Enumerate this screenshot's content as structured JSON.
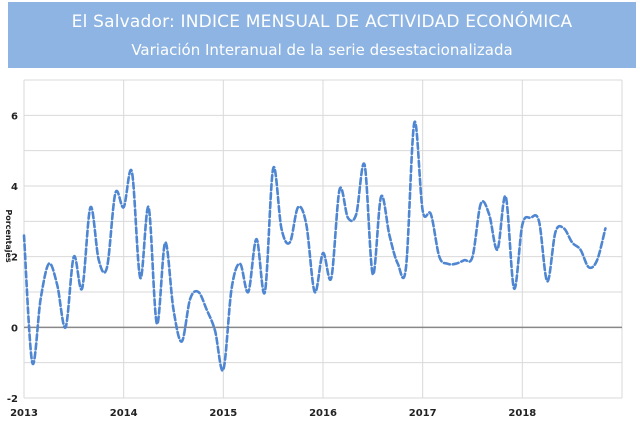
{
  "header": {
    "title": "El Salvador: INDICE MENSUAL DE ACTIVIDAD ECONÓMICA",
    "subtitle": "Variación Interanual de la serie desestacionalizada",
    "background": "#8db4e2"
  },
  "chart_data": {
    "type": "line",
    "title": "El Salvador: INDICE MENSUAL DE ACTIVIDAD ECONÓMICA",
    "subtitle": "Variación Interanual de la serie desestacionalizada",
    "xlabel": "",
    "ylabel": "Porcentajes",
    "ylim": [
      -2,
      7
    ],
    "xlim": [
      2013.0,
      2019.0
    ],
    "yticks": [
      -2,
      0,
      2,
      4,
      6
    ],
    "xticks": [
      "2013",
      "2014",
      "2015",
      "2016",
      "2017",
      "2018"
    ],
    "grid": true,
    "series": [
      {
        "color": "#4f86d1",
        "style": "dashed",
        "x": [
          2013.0,
          2013.083,
          2013.167,
          2013.25,
          2013.333,
          2013.417,
          2013.5,
          2013.583,
          2013.667,
          2013.75,
          2013.833,
          2013.917,
          2014.0,
          2014.083,
          2014.167,
          2014.25,
          2014.333,
          2014.417,
          2014.5,
          2014.583,
          2014.667,
          2014.75,
          2014.833,
          2014.917,
          2015.0,
          2015.083,
          2015.167,
          2015.25,
          2015.333,
          2015.417,
          2015.5,
          2015.583,
          2015.667,
          2015.75,
          2015.833,
          2015.917,
          2016.0,
          2016.083,
          2016.167,
          2016.25,
          2016.333,
          2016.417,
          2016.5,
          2016.583,
          2016.667,
          2016.75,
          2016.833,
          2016.917,
          2017.0,
          2017.083,
          2017.167,
          2017.25,
          2017.333,
          2017.417,
          2017.5,
          2017.583,
          2017.667,
          2017.75,
          2017.833,
          2017.917,
          2018.0,
          2018.083,
          2018.167,
          2018.25,
          2018.333,
          2018.417,
          2018.5,
          2018.583,
          2018.667,
          2018.75,
          2018.833
        ],
        "values": [
          2.6,
          -1.0,
          0.8,
          1.8,
          1.2,
          0.0,
          2.0,
          1.1,
          3.4,
          1.9,
          1.7,
          3.8,
          3.4,
          4.4,
          1.4,
          3.4,
          0.1,
          2.4,
          0.5,
          -0.4,
          0.8,
          1.0,
          0.5,
          -0.1,
          -1.2,
          1.1,
          1.8,
          1.0,
          2.5,
          1.0,
          4.5,
          2.8,
          2.4,
          3.4,
          2.9,
          1.0,
          2.1,
          1.4,
          3.9,
          3.1,
          3.2,
          4.6,
          1.5,
          3.7,
          2.6,
          1.8,
          1.7,
          5.8,
          3.3,
          3.2,
          2.0,
          1.8,
          1.8,
          1.9,
          2.0,
          3.5,
          3.2,
          2.2,
          3.7,
          1.1,
          2.9,
          3.1,
          3.0,
          1.3,
          2.7,
          2.8,
          2.4,
          2.2,
          1.7,
          1.9,
          2.8
        ]
      }
    ]
  }
}
